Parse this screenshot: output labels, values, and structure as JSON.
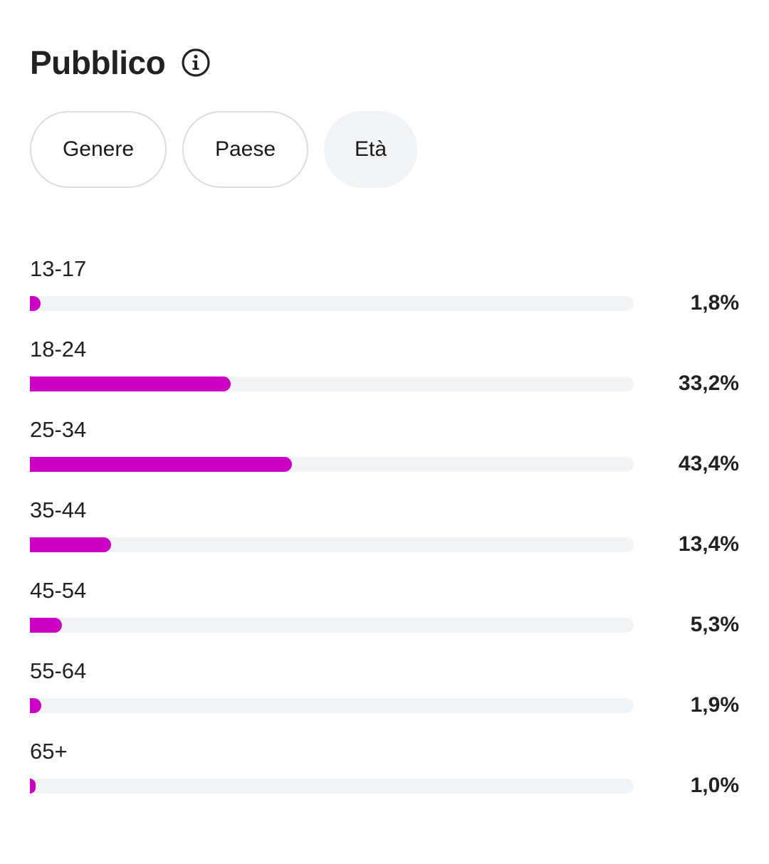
{
  "header": {
    "title": "Pubblico",
    "info_icon": "info-circle-icon"
  },
  "tabs": [
    {
      "label": "Genere",
      "active": false
    },
    {
      "label": "Paese",
      "active": false
    },
    {
      "label": "Età",
      "active": true
    }
  ],
  "colors": {
    "bar_fill": "#cc00c4",
    "track": "#f2f3f5",
    "text": "#222222"
  },
  "rows": [
    {
      "label": "13-17",
      "value": 1.8,
      "display": "1,8%"
    },
    {
      "label": "18-24",
      "value": 33.2,
      "display": "33,2%"
    },
    {
      "label": "25-34",
      "value": 43.4,
      "display": "43,4%"
    },
    {
      "label": "35-44",
      "value": 13.4,
      "display": "13,4%"
    },
    {
      "label": "45-54",
      "value": 5.3,
      "display": "5,3%"
    },
    {
      "label": "55-64",
      "value": 1.9,
      "display": "1,9%"
    },
    {
      "label": "65+",
      "value": 1.0,
      "display": "1,0%"
    }
  ],
  "chart_data": {
    "type": "bar",
    "orientation": "horizontal",
    "title": "Pubblico",
    "subtitle": "Età",
    "categories": [
      "13-17",
      "18-24",
      "25-34",
      "35-44",
      "45-54",
      "55-64",
      "65+"
    ],
    "values": [
      1.8,
      33.2,
      43.4,
      13.4,
      5.3,
      1.9,
      1.0
    ],
    "value_labels": [
      "1,8%",
      "33,2%",
      "43,4%",
      "13,4%",
      "5,3%",
      "1,9%",
      "1,0%"
    ],
    "xlabel": "",
    "ylabel": "",
    "xlim": [
      0,
      100
    ],
    "unit": "%",
    "grid": false,
    "legend": null,
    "color": "#cc00c4"
  }
}
